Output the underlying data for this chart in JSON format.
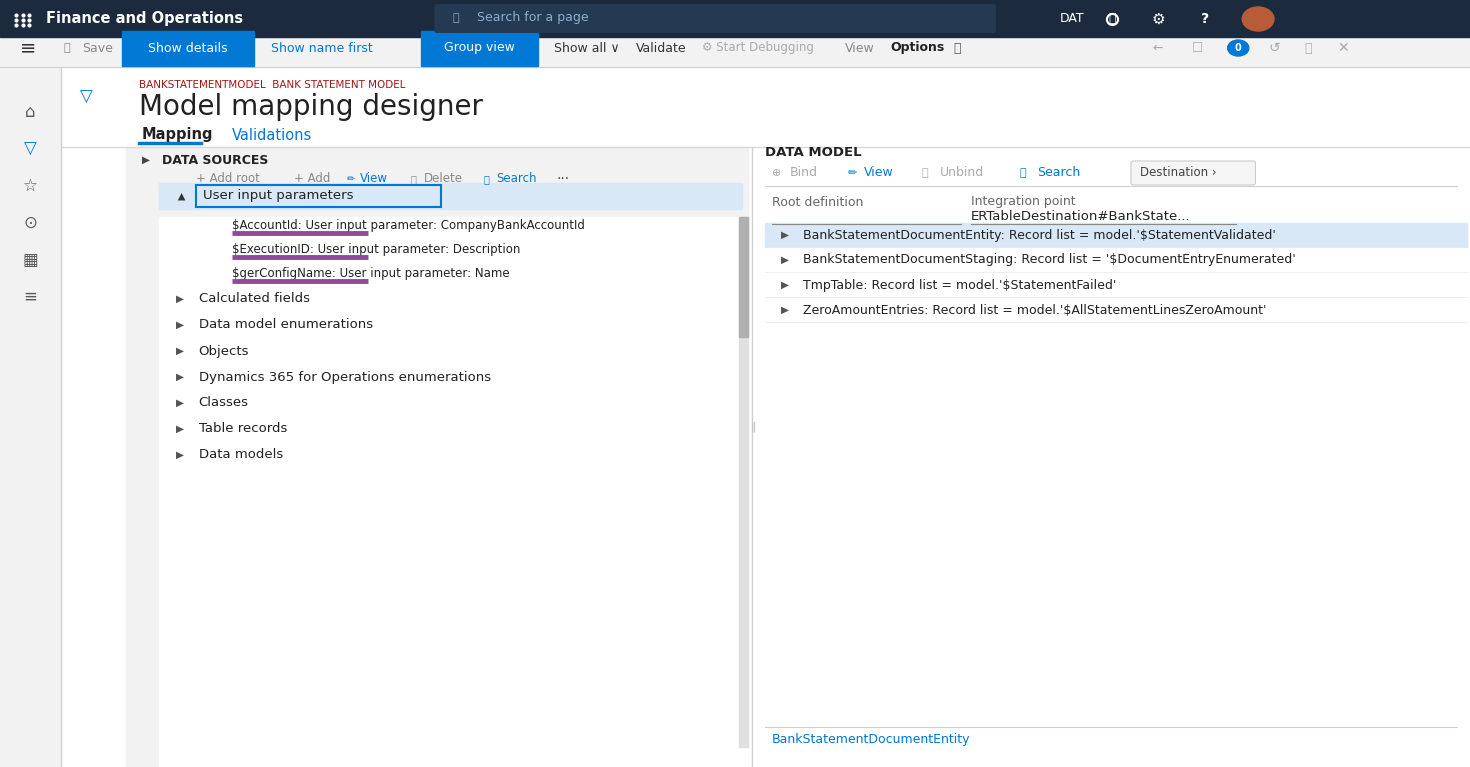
{
  "title_bar_color": "#1b2a3c",
  "title_bar_text": "Finance and Operations",
  "search_bar_text": "Search for a page",
  "search_bar_color": "#243a52",
  "toolbar_bg": "#f2f2f2",
  "breadcrumb_text": "BANKSTATEMENTMODEL  BANK STATEMENT MODEL",
  "breadcrumb_color": "#a31515",
  "page_title": "Model mapping designer",
  "tab_active": "Mapping",
  "tab_inactive": "Validations",
  "content_bg": "#ffffff",
  "panel_bg": "#f0f0f0",
  "left_panel_bg": "#f2f2f2",
  "data_sources_label": "DATA SOURCES",
  "selected_item": "User input parameters",
  "selected_bg": "#d9e8f7",
  "selected_border": "#0078d4",
  "child_items": [
    {
      "text": "$AccountId: User input parameter: CompanyBankAccountId",
      "bar_color": "#8b4a9c"
    },
    {
      "text": "$ExecutionID: User input parameter: Description",
      "bar_color": "#8b4a9c"
    },
    {
      "text": "$gerConfigName: User input parameter: Name",
      "bar_color": "#8b4a9c"
    }
  ],
  "tree_items": [
    "Calculated fields",
    "Data model enumerations",
    "Objects",
    "Dynamics 365 for Operations enumerations",
    "Classes",
    "Table records",
    "Data models"
  ],
  "right_panel_label": "DATA MODEL",
  "root_def_label": "Root definition",
  "integration_label": "Integration point",
  "integration_value": "ERTableDestination#BankState...",
  "right_items": [
    {
      "text": "BankStatementDocumentEntity: Record list = model.'$StatementValidated'",
      "bg": "#d9e8f7"
    },
    {
      "text": "BankStatementDocumentStaging: Record list = '$DocumentEntryEnumerated'",
      "bg": "#ffffff"
    },
    {
      "text": "TmpTable: Record list = model.'$StatementFailed'",
      "bg": "#ffffff"
    },
    {
      "text": "ZeroAmountEntries: Record list = model.'$AllStatementLinesZeroAmount'",
      "bg": "#ffffff"
    }
  ],
  "bottom_label": "BankStatementDocumentEntity",
  "blue": "#0078d4",
  "gray_text": "#888888",
  "dark_text": "#212121",
  "filter_blue": "#0078d4"
}
